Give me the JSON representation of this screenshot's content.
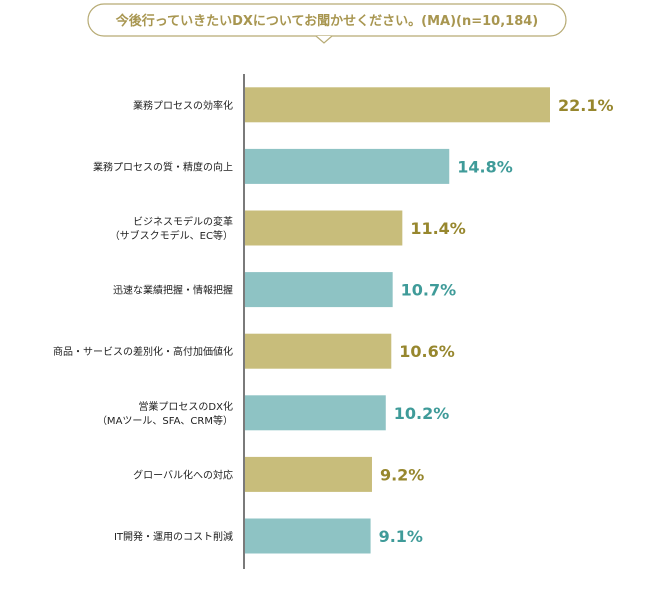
{
  "chart_data": {
    "type": "bar",
    "orientation": "horizontal",
    "title": "今後行っていきたいDXについてお聞かせください。(MA)(n=10,184)",
    "xlim": [
      0,
      25
    ],
    "grid": false,
    "categories": [
      [
        "業務プロセスの効率化"
      ],
      [
        "業務プロセスの質・精度の向上"
      ],
      [
        "ビジネスモデルの変革",
        "（サブスクモデル、EC等）"
      ],
      [
        "迅速な業績把握・情報把握"
      ],
      [
        "商品・サービスの差別化・高付加価値化"
      ],
      [
        "営業プロセスのDX化",
        "（MAツール、SFA、CRM等）"
      ],
      [
        "グローバル化への対応"
      ],
      [
        "IT開発・運用のコスト削減"
      ]
    ],
    "values": [
      22.1,
      14.8,
      11.4,
      10.7,
      10.6,
      10.2,
      9.2,
      9.1
    ],
    "value_labels": [
      "22.1%",
      "14.8%",
      "11.4%",
      "10.7%",
      "10.6%",
      "10.2%",
      "9.2%",
      "9.1%"
    ],
    "colors": {
      "title_text": "#a89650",
      "bar_gold": "#c8bd7b",
      "bar_teal": "#8ec3c4",
      "label_gold": "#97872e",
      "label_teal": "#3f9b99",
      "axis": "#222222",
      "category_text": "#222222"
    }
  }
}
